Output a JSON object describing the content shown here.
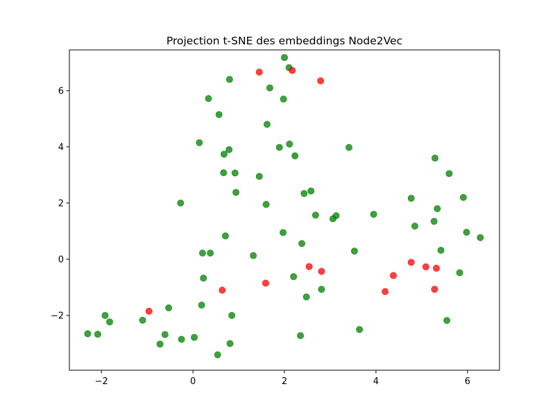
{
  "chart_data": {
    "type": "scatter",
    "title": "Projection t-SNE des embeddings Node2Vec",
    "xlabel": "",
    "ylabel": "",
    "xlim": [
      -2.7,
      6.7
    ],
    "ylim": [
      -3.95,
      7.45
    ],
    "x_ticks": [
      -2,
      0,
      2,
      4,
      6
    ],
    "y_ticks": [
      -2,
      0,
      2,
      4,
      6
    ],
    "x_tick_labels": [
      "−2",
      "0",
      "2",
      "4",
      "6"
    ],
    "y_tick_labels": [
      "−2",
      "0",
      "2",
      "4",
      "6"
    ],
    "grid": false,
    "legend": "none",
    "marker_alpha": 0.75,
    "series": [
      {
        "color": "#008000",
        "points": [
          {
            "x": 2.0,
            "y": 7.18
          },
          {
            "x": 2.1,
            "y": 6.82
          },
          {
            "x": 0.8,
            "y": 6.4
          },
          {
            "x": 1.68,
            "y": 6.1
          },
          {
            "x": 0.34,
            "y": 5.72
          },
          {
            "x": 1.98,
            "y": 5.7
          },
          {
            "x": 0.57,
            "y": 5.15
          },
          {
            "x": 1.62,
            "y": 4.8
          },
          {
            "x": 0.14,
            "y": 4.15
          },
          {
            "x": 2.11,
            "y": 4.1
          },
          {
            "x": 1.89,
            "y": 3.98
          },
          {
            "x": 3.41,
            "y": 3.98
          },
          {
            "x": 0.79,
            "y": 3.9
          },
          {
            "x": 0.68,
            "y": 3.74
          },
          {
            "x": 2.23,
            "y": 3.68
          },
          {
            "x": 5.29,
            "y": 3.6
          },
          {
            "x": 0.67,
            "y": 3.08
          },
          {
            "x": 0.92,
            "y": 3.07
          },
          {
            "x": 5.6,
            "y": 3.05
          },
          {
            "x": 1.45,
            "y": 2.95
          },
          {
            "x": 2.58,
            "y": 2.43
          },
          {
            "x": 0.94,
            "y": 2.38
          },
          {
            "x": 2.43,
            "y": 2.34
          },
          {
            "x": 4.77,
            "y": 2.17
          },
          {
            "x": 5.91,
            "y": 2.2
          },
          {
            "x": -0.27,
            "y": 2.0
          },
          {
            "x": 1.6,
            "y": 1.95
          },
          {
            "x": 5.34,
            "y": 1.8
          },
          {
            "x": 3.95,
            "y": 1.6
          },
          {
            "x": 2.68,
            "y": 1.57
          },
          {
            "x": 3.13,
            "y": 1.55
          },
          {
            "x": 3.06,
            "y": 1.44
          },
          {
            "x": 5.27,
            "y": 1.35
          },
          {
            "x": 4.85,
            "y": 1.18
          },
          {
            "x": 5.98,
            "y": 0.96
          },
          {
            "x": 1.97,
            "y": 0.95
          },
          {
            "x": 0.71,
            "y": 0.83
          },
          {
            "x": 6.28,
            "y": 0.77
          },
          {
            "x": 2.38,
            "y": 0.56
          },
          {
            "x": 5.42,
            "y": 0.32
          },
          {
            "x": 3.53,
            "y": 0.29
          },
          {
            "x": 0.21,
            "y": 0.22
          },
          {
            "x": 0.38,
            "y": 0.22
          },
          {
            "x": 1.32,
            "y": 0.13
          },
          {
            "x": 5.83,
            "y": -0.48
          },
          {
            "x": 2.2,
            "y": -0.62
          },
          {
            "x": 0.23,
            "y": -0.67
          },
          {
            "x": 2.81,
            "y": -1.07
          },
          {
            "x": 2.48,
            "y": -1.34
          },
          {
            "x": 0.19,
            "y": -1.63
          },
          {
            "x": -0.53,
            "y": -1.73
          },
          {
            "x": -1.92,
            "y": -2.0
          },
          {
            "x": 0.85,
            "y": -2.0
          },
          {
            "x": -1.1,
            "y": -2.17
          },
          {
            "x": -1.82,
            "y": -2.23
          },
          {
            "x": 5.55,
            "y": -2.18
          },
          {
            "x": 3.64,
            "y": -2.5
          },
          {
            "x": -2.3,
            "y": -2.65
          },
          {
            "x": -2.08,
            "y": -2.67
          },
          {
            "x": -0.61,
            "y": -2.68
          },
          {
            "x": 2.35,
            "y": -2.72
          },
          {
            "x": 0.03,
            "y": -2.78
          },
          {
            "x": -0.25,
            "y": -2.85
          },
          {
            "x": -0.72,
            "y": -3.02
          },
          {
            "x": 0.81,
            "y": -3.0
          },
          {
            "x": 0.54,
            "y": -3.4
          }
        ]
      },
      {
        "color": "#ff0000",
        "points": [
          {
            "x": 1.45,
            "y": 6.66
          },
          {
            "x": 2.17,
            "y": 6.72
          },
          {
            "x": 2.79,
            "y": 6.35
          },
          {
            "x": 2.54,
            "y": -0.26
          },
          {
            "x": 2.81,
            "y": -0.43
          },
          {
            "x": 4.77,
            "y": -0.11
          },
          {
            "x": 5.09,
            "y": -0.27
          },
          {
            "x": 5.32,
            "y": -0.32
          },
          {
            "x": 4.38,
            "y": -0.58
          },
          {
            "x": 1.59,
            "y": -0.85
          },
          {
            "x": 0.64,
            "y": -1.1
          },
          {
            "x": 5.28,
            "y": -1.07
          },
          {
            "x": 4.2,
            "y": -1.15
          },
          {
            "x": -0.96,
            "y": -1.85
          }
        ]
      }
    ]
  }
}
